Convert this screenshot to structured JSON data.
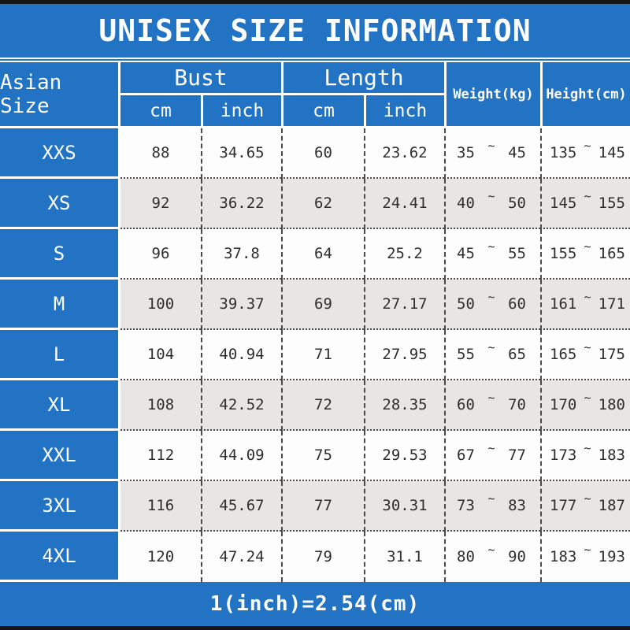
{
  "title": "UNISEX SIZE INFORMATION",
  "footer_note": "1(inch)=2.54(cm)",
  "colors": {
    "accent_blue": "#2273C4",
    "row_alt_gray": "#E7E6E4",
    "row_white": "#FDFDFD",
    "frame_black": "#161616",
    "data_text": "#2E2E2E"
  },
  "table": {
    "tilde": "~",
    "size_header": "Asian Size",
    "groups": {
      "bust": {
        "label": "Bust",
        "sub_cm": "cm",
        "sub_inch": "inch"
      },
      "length": {
        "label": "Length",
        "sub_cm": "cm",
        "sub_inch": "inch"
      }
    },
    "weight_header": "Weight(kg)",
    "height_header": "Height(cm)",
    "rows": [
      {
        "size": "XXS",
        "bust_cm": "88",
        "bust_inch": "34.65",
        "length_cm": "60",
        "length_inch": "23.62",
        "weight_min": "35",
        "weight_max": "45",
        "height_min": "135",
        "height_max": "145"
      },
      {
        "size": "XS",
        "bust_cm": "92",
        "bust_inch": "36.22",
        "length_cm": "62",
        "length_inch": "24.41",
        "weight_min": "40",
        "weight_max": "50",
        "height_min": "145",
        "height_max": "155"
      },
      {
        "size": "S",
        "bust_cm": "96",
        "bust_inch": "37.8",
        "length_cm": "64",
        "length_inch": "25.2",
        "weight_min": "45",
        "weight_max": "55",
        "height_min": "155",
        "height_max": "165"
      },
      {
        "size": "M",
        "bust_cm": "100",
        "bust_inch": "39.37",
        "length_cm": "69",
        "length_inch": "27.17",
        "weight_min": "50",
        "weight_max": "60",
        "height_min": "161",
        "height_max": "171"
      },
      {
        "size": "L",
        "bust_cm": "104",
        "bust_inch": "40.94",
        "length_cm": "71",
        "length_inch": "27.95",
        "weight_min": "55",
        "weight_max": "65",
        "height_min": "165",
        "height_max": "175"
      },
      {
        "size": "XL",
        "bust_cm": "108",
        "bust_inch": "42.52",
        "length_cm": "72",
        "length_inch": "28.35",
        "weight_min": "60",
        "weight_max": "70",
        "height_min": "170",
        "height_max": "180"
      },
      {
        "size": "XXL",
        "bust_cm": "112",
        "bust_inch": "44.09",
        "length_cm": "75",
        "length_inch": "29.53",
        "weight_min": "67",
        "weight_max": "77",
        "height_min": "173",
        "height_max": "183"
      },
      {
        "size": "3XL",
        "bust_cm": "116",
        "bust_inch": "45.67",
        "length_cm": "77",
        "length_inch": "30.31",
        "weight_min": "73",
        "weight_max": "83",
        "height_min": "177",
        "height_max": "187"
      },
      {
        "size": "4XL",
        "bust_cm": "120",
        "bust_inch": "47.24",
        "length_cm": "79",
        "length_inch": "31.1",
        "weight_min": "80",
        "weight_max": "90",
        "height_min": "183",
        "height_max": "193"
      }
    ]
  },
  "chart_data": {
    "type": "table",
    "title": "UNISEX SIZE INFORMATION",
    "columns": [
      "Asian Size",
      "Bust cm",
      "Bust inch",
      "Length cm",
      "Length inch",
      "Weight(kg)",
      "Height(cm)"
    ],
    "rows": [
      [
        "XXS",
        "88",
        "34.65",
        "60",
        "23.62",
        "35~45",
        "135~145"
      ],
      [
        "XS",
        "92",
        "36.22",
        "62",
        "24.41",
        "40~50",
        "145~155"
      ],
      [
        "S",
        "96",
        "37.8",
        "64",
        "25.2",
        "45~55",
        "155~165"
      ],
      [
        "M",
        "100",
        "39.37",
        "69",
        "27.17",
        "50~60",
        "161~171"
      ],
      [
        "L",
        "104",
        "40.94",
        "71",
        "27.95",
        "55~65",
        "165~175"
      ],
      [
        "XL",
        "108",
        "42.52",
        "72",
        "28.35",
        "60~70",
        "170~180"
      ],
      [
        "XXL",
        "112",
        "44.09",
        "75",
        "29.53",
        "67~77",
        "173~183"
      ],
      [
        "3XL",
        "116",
        "45.67",
        "77",
        "30.31",
        "73~83",
        "177~187"
      ],
      [
        "4XL",
        "120",
        "47.24",
        "79",
        "31.1",
        "80~90",
        "183~193"
      ]
    ],
    "footnote": "1(inch)=2.54(cm)"
  }
}
